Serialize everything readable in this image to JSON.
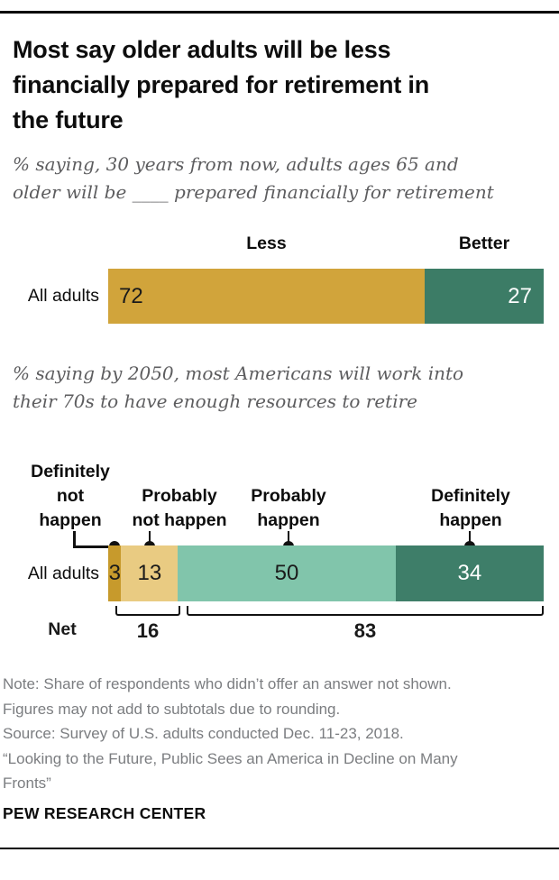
{
  "header": {
    "title": "Most say older adults will be less financially prepared for retirement in the future",
    "title_lines": [
      "Most say older adults will be less",
      "financially prepared for retirement in",
      "the future"
    ]
  },
  "chart_data": [
    {
      "type": "bar",
      "orientation": "horizontal-stacked",
      "subtitle": "% saying, 30 years from now, adults ages 65 and older will be ____ prepared financially for retirement",
      "subtitle_lines": [
        "% saying, 30 years from now, adults ages 65 and",
        "older will be ____ prepared financially for retirement"
      ],
      "row_label": "All adults",
      "categories": [
        "Less",
        "Better"
      ],
      "values": [
        72,
        27
      ],
      "scale_total": 99,
      "colors": [
        "#d1a43b",
        "#3c7c66"
      ],
      "legend_position": "above-segments",
      "grid": false
    },
    {
      "type": "bar",
      "orientation": "horizontal-stacked",
      "subtitle": "% saying by 2050, most Americans will work into their 70s to have enough resources to retire",
      "subtitle_lines": [
        "% saying by 2050, most Americans will work into",
        "their 70s to have enough resources to retire"
      ],
      "row_label": "All adults",
      "categories": [
        "Definitely not happen",
        "Probably not happen",
        "Probably happen",
        "Definitely happen"
      ],
      "cat_lines": [
        [
          "Definitely",
          "not",
          "happen"
        ],
        [
          "Probably",
          "not happen"
        ],
        [
          "Probably",
          "happen"
        ],
        [
          "Definitely",
          "happen"
        ]
      ],
      "values": [
        3,
        13,
        50,
        34
      ],
      "scale_total": 100,
      "colors": [
        "#c79a2c",
        "#e9cb82",
        "#81c5ab",
        "#3e7e69"
      ],
      "net_label": "Net",
      "nets": [
        {
          "value": 16,
          "covers": [
            "Definitely not happen",
            "Probably not happen"
          ]
        },
        {
          "value": 83,
          "covers": [
            "Probably happen",
            "Definitely happen"
          ]
        }
      ],
      "grid": false
    }
  ],
  "footer": {
    "notes": [
      "Note: Share of respondents who didn’t offer an answer not shown.",
      "Figures may not add to subtotals due to rounding.",
      "Source: Survey of U.S. adults conducted Dec. 11-23, 2018.",
      "“Looking to the Future, Public Sees an America in Decline on Many",
      "Fronts”"
    ],
    "brand": "PEW RESEARCH CENTER"
  }
}
